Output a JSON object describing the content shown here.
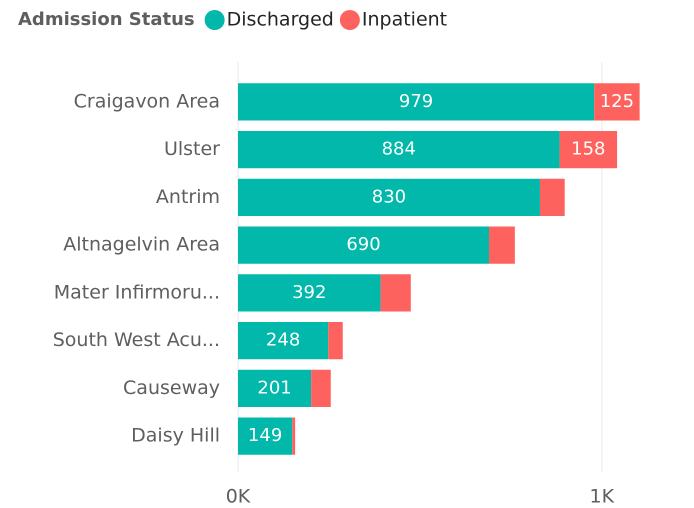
{
  "chart_data": {
    "type": "stacked_bar_horizontal",
    "legend_title": "Admission Status",
    "categories": [
      "Craigavon Area",
      "Ulster",
      "Antrim",
      "Altnagelvin Area",
      "Mater Infirmoru...",
      "South West Acu...",
      "Causeway",
      "Daisy Hill"
    ],
    "series": [
      {
        "name": "Discharged",
        "color": "#01B8AA",
        "values": [
          979,
          884,
          830,
          690,
          392,
          248,
          201,
          149
        ]
      },
      {
        "name": "Inpatient",
        "color": "#FD625E",
        "values": [
          125,
          158,
          68,
          71,
          83,
          40,
          54,
          8
        ]
      }
    ],
    "xlim": [
      0,
      1160
    ],
    "xticks": [
      {
        "value": 0,
        "label": "0K"
      },
      {
        "value": 1000,
        "label": "1K"
      }
    ],
    "grid": true
  }
}
